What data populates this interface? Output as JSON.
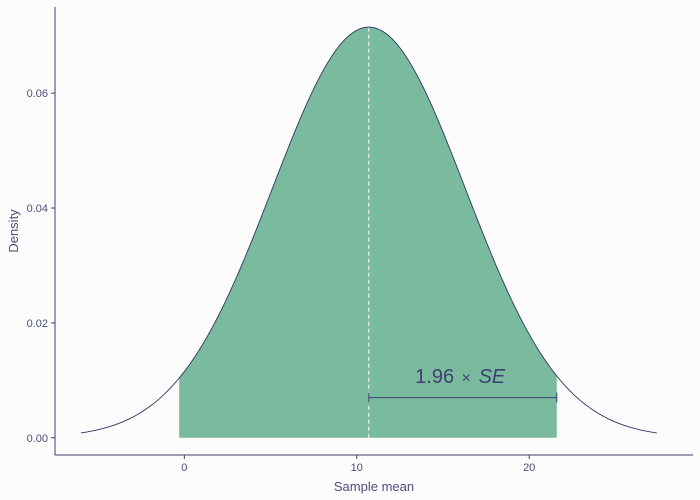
{
  "colors": {
    "background": "#fcfcfc",
    "fill": "#7aba9f",
    "curve": "#2e3563",
    "axis": "#3d4170",
    "text": "#4a4e7e",
    "mean_line": "#ffffff"
  },
  "chart_data": {
    "type": "area",
    "title": "",
    "xlabel": "Sample mean",
    "ylabel": "Density",
    "xlim": [
      -7.5,
      29.5
    ],
    "ylim": [
      -0.003,
      0.075
    ],
    "x_ticks": [
      0,
      10,
      20
    ],
    "x_tick_labels": [
      "0",
      "10",
      "20"
    ],
    "y_ticks": [
      0.0,
      0.02,
      0.04,
      0.06
    ],
    "y_tick_labels": [
      "0.00",
      "0.02",
      "0.04",
      "0.06"
    ],
    "grid": false,
    "distribution": {
      "mean": 10.7,
      "se": 5.6,
      "peak_density": 0.0715
    },
    "curve_range": [
      -6.0,
      27.4
    ],
    "shaded_range": [
      -0.3,
      21.6
    ],
    "mean_line_x": 10.7,
    "bracket": {
      "x_start": 10.7,
      "x_end": 21.6,
      "y": 0.007
    },
    "annotation": {
      "prefix": "1.96",
      "operator": "×",
      "suffix": "SE",
      "x": 16.0,
      "y": 0.0095
    }
  }
}
